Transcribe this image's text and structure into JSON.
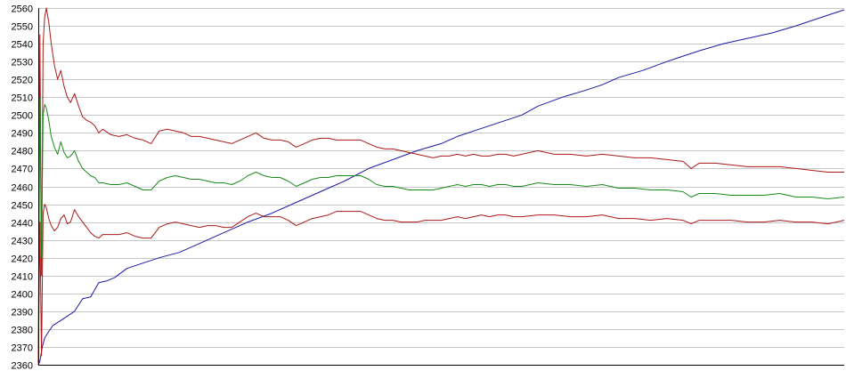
{
  "chart_data": {
    "type": "line",
    "title": "",
    "xlabel": "",
    "ylabel": "",
    "ylim": [
      2360,
      2560
    ],
    "xlim": [
      0,
      1000
    ],
    "y_ticks": [
      2560,
      2550,
      2540,
      2530,
      2520,
      2510,
      2500,
      2490,
      2480,
      2470,
      2460,
      2450,
      2440,
      2430,
      2420,
      2410,
      2400,
      2390,
      2380,
      2370,
      2360
    ],
    "grid": true,
    "legend": "none",
    "series": [
      {
        "color": "#1a1aa6",
        "x": [
          0,
          2,
          5,
          8,
          12,
          18,
          25,
          35,
          45,
          55,
          65,
          75,
          85,
          95,
          110,
          130,
          150,
          175,
          200,
          230,
          260,
          290,
          320,
          350,
          380,
          410,
          440,
          470,
          500,
          520,
          540,
          560,
          580,
          600,
          620,
          650,
          680,
          700,
          720,
          750,
          780,
          800,
          820,
          850,
          880,
          910,
          940,
          960,
          980,
          1000
        ],
        "y": [
          2360,
          2362,
          2370,
          2375,
          2378,
          2382,
          2384,
          2387,
          2390,
          2397,
          2398,
          2406,
          2407,
          2409,
          2414,
          2417,
          2420,
          2423,
          2428,
          2434,
          2440,
          2445,
          2451,
          2457,
          2463,
          2470,
          2475,
          2480,
          2484,
          2488,
          2491,
          2494,
          2497,
          2500,
          2505,
          2510,
          2514,
          2517,
          2521,
          2525,
          2530,
          2533,
          2536,
          2540,
          2543,
          2546,
          2550,
          2553,
          2556,
          2559
        ]
      },
      {
        "color": "#aa1a1a",
        "x": [
          0,
          2,
          4,
          6,
          8,
          10,
          13,
          16,
          20,
          24,
          28,
          32,
          36,
          40,
          45,
          50,
          55,
          60,
          65,
          70,
          75,
          80,
          90,
          100,
          110,
          120,
          130,
          140,
          150,
          160,
          170,
          180,
          190,
          200,
          210,
          220,
          230,
          240,
          250,
          260,
          270,
          280,
          290,
          300,
          310,
          320,
          330,
          340,
          350,
          360,
          370,
          380,
          390,
          400,
          410,
          420,
          430,
          440,
          450,
          460,
          470,
          480,
          490,
          500,
          510,
          520,
          530,
          540,
          550,
          560,
          570,
          580,
          590,
          600,
          620,
          640,
          660,
          680,
          700,
          720,
          740,
          760,
          780,
          800,
          810,
          820,
          840,
          860,
          880,
          900,
          920,
          940,
          960,
          980,
          1000
        ],
        "y": [
          2360,
          2545,
          2410,
          2540,
          2555,
          2560,
          2552,
          2540,
          2528,
          2520,
          2525,
          2516,
          2510,
          2507,
          2512,
          2505,
          2499,
          2497,
          2496,
          2494,
          2490,
          2492,
          2489,
          2488,
          2489,
          2487,
          2486,
          2484,
          2491,
          2492,
          2491,
          2490,
          2488,
          2488,
          2487,
          2486,
          2485,
          2484,
          2486,
          2488,
          2490,
          2487,
          2486,
          2486,
          2485,
          2482,
          2484,
          2486,
          2487,
          2487,
          2486,
          2486,
          2486,
          2486,
          2484,
          2482,
          2481,
          2481,
          2480,
          2479,
          2478,
          2477,
          2476,
          2477,
          2477,
          2478,
          2477,
          2478,
          2477,
          2477,
          2478,
          2478,
          2477,
          2478,
          2480,
          2478,
          2478,
          2477,
          2478,
          2477,
          2476,
          2476,
          2475,
          2474,
          2470,
          2473,
          2473,
          2472,
          2471,
          2471,
          2471,
          2470,
          2469,
          2468,
          2468
        ]
      },
      {
        "color": "#1a8a1a",
        "x": [
          0,
          2,
          4,
          6,
          8,
          10,
          13,
          16,
          20,
          24,
          28,
          32,
          36,
          40,
          45,
          50,
          55,
          60,
          65,
          70,
          75,
          80,
          90,
          100,
          110,
          120,
          130,
          140,
          150,
          160,
          170,
          180,
          190,
          200,
          210,
          220,
          230,
          240,
          250,
          260,
          270,
          280,
          290,
          300,
          310,
          320,
          330,
          340,
          350,
          360,
          370,
          380,
          390,
          400,
          410,
          420,
          430,
          440,
          450,
          460,
          470,
          480,
          490,
          500,
          510,
          520,
          530,
          540,
          550,
          560,
          570,
          580,
          590,
          600,
          620,
          640,
          660,
          680,
          700,
          720,
          740,
          760,
          780,
          800,
          810,
          820,
          840,
          860,
          880,
          900,
          920,
          940,
          960,
          980,
          1000
        ],
        "y": [
          2360,
          2510,
          2420,
          2500,
          2506,
          2504,
          2497,
          2488,
          2482,
          2478,
          2485,
          2479,
          2476,
          2477,
          2480,
          2474,
          2470,
          2468,
          2466,
          2465,
          2462,
          2462,
          2461,
          2461,
          2462,
          2460,
          2458,
          2458,
          2463,
          2465,
          2466,
          2465,
          2464,
          2464,
          2463,
          2462,
          2462,
          2461,
          2463,
          2466,
          2468,
          2466,
          2465,
          2465,
          2463,
          2460,
          2462,
          2464,
          2465,
          2465,
          2466,
          2466,
          2466,
          2466,
          2464,
          2461,
          2460,
          2460,
          2459,
          2458,
          2458,
          2458,
          2458,
          2459,
          2460,
          2461,
          2460,
          2461,
          2461,
          2460,
          2461,
          2461,
          2460,
          2460,
          2462,
          2461,
          2461,
          2460,
          2461,
          2459,
          2459,
          2458,
          2458,
          2457,
          2454,
          2456,
          2456,
          2455,
          2455,
          2455,
          2456,
          2454,
          2454,
          2453,
          2454
        ]
      },
      {
        "color": "#aa1a1a",
        "x": [
          0,
          2,
          4,
          6,
          8,
          10,
          13,
          16,
          20,
          24,
          28,
          32,
          36,
          40,
          45,
          50,
          55,
          60,
          65,
          70,
          75,
          80,
          90,
          100,
          110,
          120,
          130,
          140,
          150,
          160,
          170,
          180,
          190,
          200,
          210,
          220,
          230,
          240,
          250,
          260,
          270,
          280,
          290,
          300,
          310,
          320,
          330,
          340,
          350,
          360,
          370,
          380,
          390,
          400,
          410,
          420,
          430,
          440,
          450,
          460,
          470,
          480,
          490,
          500,
          510,
          520,
          530,
          540,
          550,
          560,
          570,
          580,
          590,
          600,
          620,
          640,
          660,
          680,
          700,
          720,
          740,
          760,
          780,
          800,
          810,
          820,
          840,
          860,
          880,
          900,
          920,
          940,
          960,
          980,
          1000
        ],
        "y": [
          2360,
          2440,
          2365,
          2445,
          2450,
          2448,
          2442,
          2438,
          2435,
          2437,
          2442,
          2444,
          2439,
          2440,
          2447,
          2443,
          2440,
          2437,
          2434,
          2432,
          2431,
          2433,
          2433,
          2433,
          2434,
          2432,
          2431,
          2431,
          2437,
          2439,
          2440,
          2439,
          2438,
          2437,
          2438,
          2438,
          2437,
          2437,
          2440,
          2443,
          2445,
          2443,
          2443,
          2443,
          2441,
          2438,
          2440,
          2442,
          2443,
          2444,
          2446,
          2446,
          2446,
          2446,
          2444,
          2442,
          2441,
          2441,
          2440,
          2440,
          2440,
          2441,
          2441,
          2441,
          2442,
          2443,
          2442,
          2443,
          2444,
          2443,
          2444,
          2444,
          2443,
          2443,
          2444,
          2444,
          2443,
          2443,
          2444,
          2442,
          2442,
          2441,
          2442,
          2441,
          2439,
          2441,
          2441,
          2441,
          2440,
          2440,
          2441,
          2440,
          2440,
          2439,
          2441
        ]
      }
    ]
  }
}
